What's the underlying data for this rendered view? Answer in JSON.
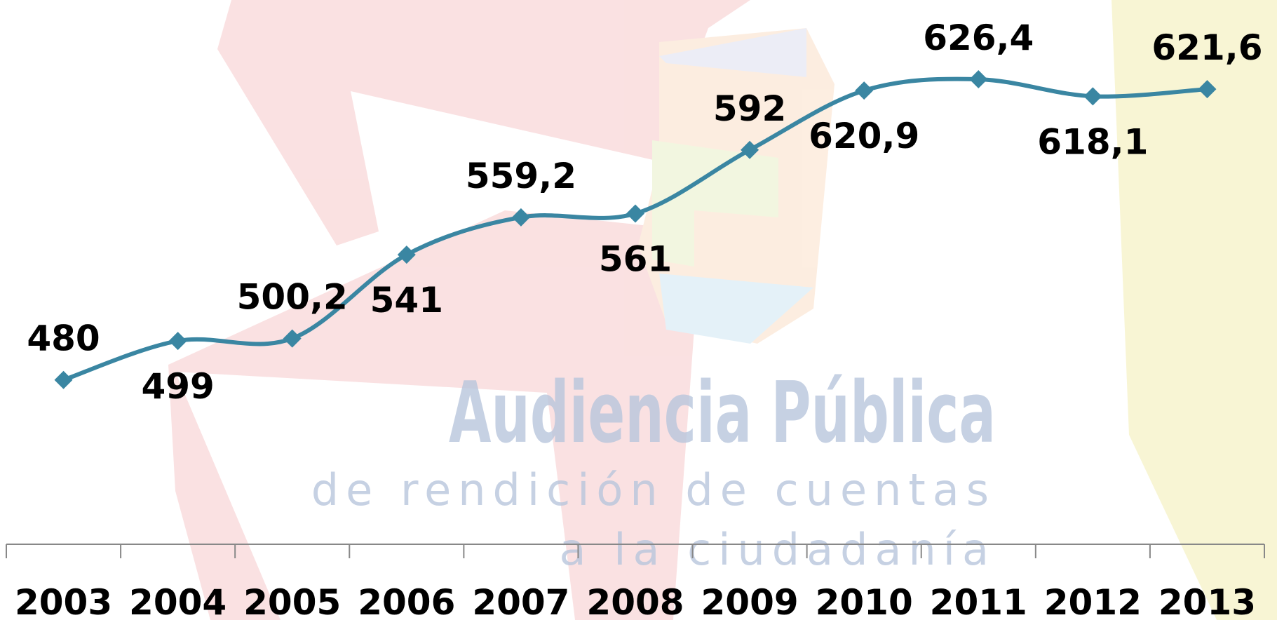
{
  "chart_data": {
    "type": "line",
    "categories": [
      "2003",
      "2004",
      "2005",
      "2006",
      "2007",
      "2008",
      "2009",
      "2010",
      "2011",
      "2012",
      "2013"
    ],
    "values": [
      480,
      499,
      500.2,
      541,
      559.2,
      561,
      592,
      620.9,
      626.4,
      618.1,
      621.6
    ],
    "value_labels": [
      "480",
      "499",
      "500,2",
      "541",
      "559,2",
      "561",
      "592",
      "620,9",
      "626,4",
      "618,1",
      "621,6"
    ],
    "color": "#3a86a2",
    "ylim": [
      400,
      665
    ],
    "annotations": [
      "Audiencia Pública",
      "de rendición de cuentas",
      "a la ciudadanía"
    ]
  }
}
